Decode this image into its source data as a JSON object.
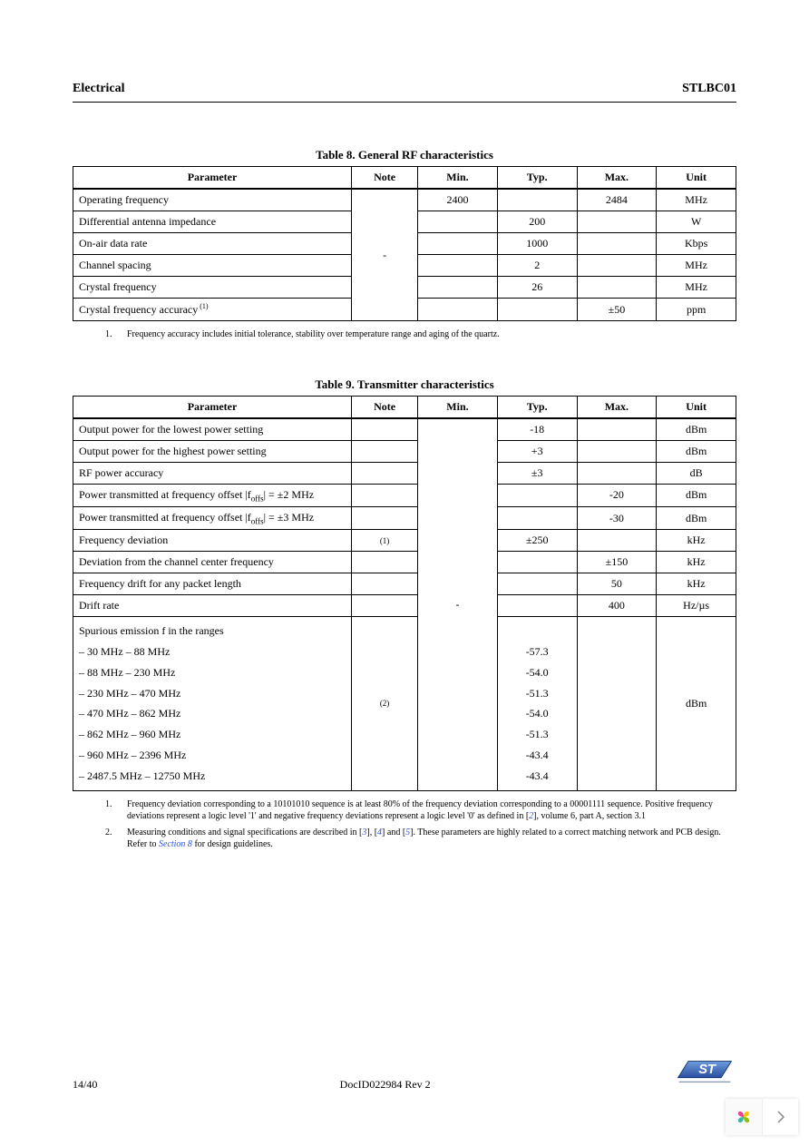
{
  "header": {
    "section": "Electrical",
    "device": "STLBC01"
  },
  "table8": {
    "title": "Table 8. General RF characteristics",
    "columns": [
      "Parameter",
      "Note",
      "Min.",
      "Typ.",
      "Max.",
      "Unit"
    ],
    "note_span": "-",
    "rows": [
      {
        "param": "Operating frequency",
        "min": "2400",
        "typ": "",
        "max": "2484",
        "unit": "MHz"
      },
      {
        "param": "Differential antenna impedance",
        "min": "",
        "typ": "200",
        "max": "",
        "unit": "W"
      },
      {
        "param": "On-air data rate",
        "min": "",
        "typ": "1000",
        "max": "",
        "unit": "Kbps"
      },
      {
        "param": "Channel spacing",
        "min": "",
        "typ": "2",
        "max": "",
        "unit": "MHz"
      },
      {
        "param": "Crystal frequency",
        "min": "",
        "typ": "26",
        "max": "",
        "unit": "MHz"
      },
      {
        "param": "Crystal frequency accuracy",
        "sup": "(1)",
        "min": "",
        "typ": "",
        "max": "±50",
        "unit": "ppm"
      }
    ],
    "footnote": "Frequency accuracy includes initial tolerance, stability over temperature range and aging of the quartz."
  },
  "table9": {
    "title": "Table 9. Transmitter characteristics",
    "columns": [
      "Parameter",
      "Note",
      "Min.",
      "Typ.",
      "Max.",
      "Unit"
    ],
    "note_span": "-",
    "rows": [
      {
        "param": "Output power for the lowest power setting",
        "note": "",
        "min": "",
        "typ": "-18",
        "max": "",
        "unit": "dBm"
      },
      {
        "param": "Output power for the highest power setting",
        "note": "",
        "min": "",
        "typ": "+3",
        "max": "",
        "unit": "dBm"
      },
      {
        "param": "RF power accuracy",
        "note": "",
        "min": "",
        "typ": "±3",
        "max": "",
        "unit": "dB"
      },
      {
        "param_html": "Power transmitted at frequency offset |f<span class='subtxt'>offs</span>| = ±2 MHz",
        "note": "",
        "min": "",
        "typ": "",
        "max": "-20",
        "unit": "dBm"
      },
      {
        "param_html": "Power transmitted at frequency offset |f<span class='subtxt'>offs</span>| = ±3 MHz",
        "note": "",
        "min": "",
        "typ": "",
        "max": "-30",
        "unit": "dBm"
      },
      {
        "param": "Frequency deviation",
        "note": "(1)",
        "min": "",
        "typ": "±250",
        "max": "",
        "unit": "kHz"
      },
      {
        "param": "Deviation from the channel center frequency",
        "note": "",
        "min": "",
        "typ": "",
        "max": "±150",
        "unit": "kHz"
      },
      {
        "param": "Frequency drift for any packet length",
        "note": "",
        "min": "",
        "typ": "",
        "max": "50",
        "unit": "kHz"
      },
      {
        "param": "Drift rate",
        "note": "",
        "min": "",
        "typ": "",
        "max": "400",
        "unit": "Hz/µs"
      }
    ],
    "spurious": {
      "header": "Spurious emission f in the ranges",
      "ranges": [
        "– 30 MHz – 88 MHz",
        "– 88 MHz – 230 MHz",
        "– 230 MHz – 470 MHz",
        "– 470 MHz – 862 MHz",
        "– 862 MHz – 960 MHz",
        "– 960 MHz – 2396 MHz",
        "– 2487.5 MHz – 12750 MHz"
      ],
      "typ": [
        "-57.3",
        "-54.0",
        "-51.3",
        "-54.0",
        "-51.3",
        "-43.4",
        "-43.4"
      ],
      "note": "(2)",
      "unit": "dBm"
    },
    "footnotes": [
      {
        "n": "1.",
        "text_parts": [
          "Frequency deviation corresponding to a 10101010 sequence is at least 80% of the frequency deviation corresponding to a 00001111 sequence. Positive frequency deviations represent a logic level '1' and negative frequency deviations represent a logic level '0' as defined in [",
          {
            "link": "2"
          },
          "], volume 6, part A, section 3.1"
        ]
      },
      {
        "n": "2.",
        "text_parts": [
          "Measuring conditions and signal specifications are described in [",
          {
            "link": "3"
          },
          "], [",
          {
            "link": "4"
          },
          "] and [",
          {
            "link": "5"
          },
          "]. These parameters are highly related to a correct matching network and PCB design. Refer to ",
          {
            "link": "Section 8"
          },
          " for design guidelines."
        ]
      }
    ]
  },
  "footer": {
    "page": "14/40",
    "docid": "DocID022984 Rev 2"
  },
  "colors": {
    "link": "#2a54d9",
    "petal_yellow": "#f5c400",
    "petal_green": "#8fbf00",
    "petal_pink": "#e54394",
    "petal_teal": "#35b6a8",
    "st_blue": "#0a2f6a",
    "st_grad_top": "#6e9ddc",
    "st_grad_bot": "#2b4ea0",
    "chevron": "#888888"
  }
}
